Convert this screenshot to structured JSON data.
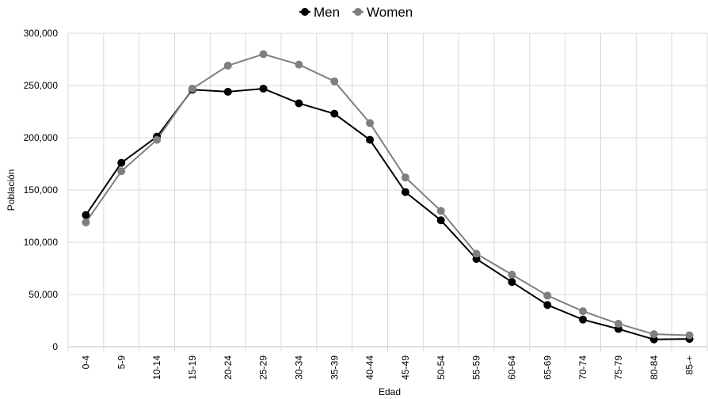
{
  "chart_data": {
    "type": "line",
    "title": "",
    "xlabel": "Edad",
    "ylabel": "Población",
    "categories": [
      "0-4",
      "5-9",
      "10-14",
      "15-19",
      "20-24",
      "25-29",
      "30-34",
      "35-39",
      "40-44",
      "45-49",
      "50-54",
      "55-59",
      "60-64",
      "65-69",
      "70-74",
      "75-79",
      "80-84",
      "85-+"
    ],
    "ylim": [
      0,
      300000
    ],
    "yticks": [
      0,
      50000,
      100000,
      150000,
      200000,
      250000,
      300000
    ],
    "ytick_labels": [
      "0",
      "50,000",
      "100,000",
      "150,000",
      "200,000",
      "250,000",
      "300,000"
    ],
    "grid": true,
    "legend_position": "top-center",
    "series": [
      {
        "name": "Men",
        "color": "#000000",
        "values": [
          126000,
          176000,
          201000,
          246000,
          244000,
          247000,
          233000,
          223000,
          198000,
          148000,
          121000,
          84000,
          62000,
          40000,
          26000,
          17000,
          7000,
          7500
        ]
      },
      {
        "name": "Women",
        "color": "#7f7f7f",
        "values": [
          119000,
          168000,
          198000,
          247000,
          269000,
          280000,
          270000,
          254000,
          214000,
          162000,
          130000,
          89000,
          69000,
          49000,
          34000,
          22000,
          12000,
          11000
        ]
      }
    ]
  }
}
